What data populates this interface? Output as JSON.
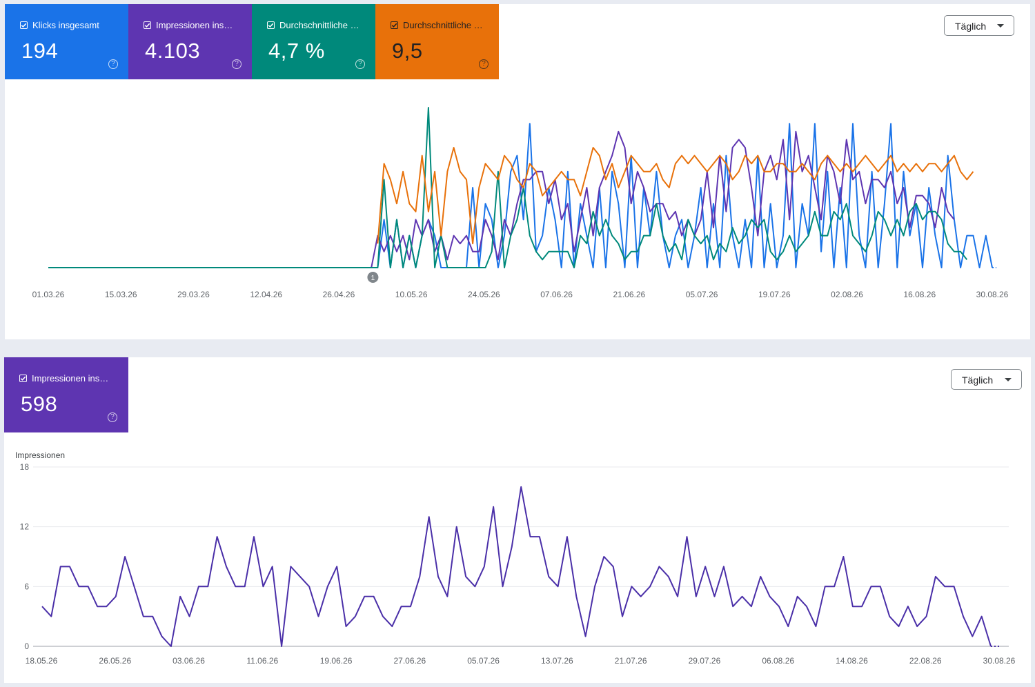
{
  "top_panel": {
    "cards": [
      {
        "label": "Klicks insgesamt",
        "value": "194",
        "color": "#1a73e8",
        "text_color": "#ffffff"
      },
      {
        "label": "Impressionen ins…",
        "value": "4.103",
        "color": "#5e35b1",
        "text_color": "#ffffff"
      },
      {
        "label": "Durchschnittliche …",
        "value": "4,7 %",
        "color": "#00897b",
        "text_color": "#ffffff"
      },
      {
        "label": "Durchschnittliche …",
        "value": "9,5",
        "color": "#e8710a",
        "text_color": "#202124"
      }
    ],
    "interval_label": "Täglich",
    "annotation_marker": "1"
  },
  "bottom_panel": {
    "cards": [
      {
        "label": "Impressionen ins…",
        "value": "598",
        "color": "#5e35b1",
        "text_color": "#ffffff"
      }
    ],
    "interval_label": "Täglich"
  },
  "chart_data": [
    {
      "type": "line",
      "x_ticks": [
        "01.03.26",
        "15.03.26",
        "29.03.26",
        "12.04.26",
        "26.04.26",
        "10.05.26",
        "24.05.26",
        "07.06.26",
        "21.06.26",
        "05.07.26",
        "19.07.26",
        "02.08.26",
        "16.08.26",
        "30.08.26"
      ],
      "grid": false,
      "y_axis_visible": false,
      "series": [
        {
          "color": "#1a73e8",
          "values": [
            0,
            0,
            0,
            0,
            0,
            0,
            0,
            0,
            0,
            0,
            0,
            0,
            0,
            0,
            0,
            0,
            0,
            0,
            0,
            0,
            0,
            0,
            0,
            0,
            0,
            0,
            0,
            0,
            0,
            0,
            0,
            0,
            0,
            0,
            0,
            0,
            0,
            0,
            0,
            0,
            0,
            0,
            0,
            0,
            0,
            0,
            0,
            0,
            0,
            0,
            0,
            0,
            0,
            0.3,
            0,
            0.3,
            0,
            0.2,
            0,
            0.2,
            0.3,
            0.2,
            0,
            0,
            0,
            0,
            0,
            0.5,
            0,
            0.4,
            0.3,
            0,
            0.2,
            0.6,
            0.7,
            0.3,
            0.9,
            0.1,
            0.2,
            0.5,
            0.3,
            0,
            0.6,
            0,
            0.4,
            0.2,
            0,
            0.5,
            0,
            0.6,
            0.4,
            0,
            0.7,
            0,
            0.5,
            0.2,
            0.6,
            0.2,
            0,
            0.2,
            0.3,
            0,
            0.2,
            0.5,
            0,
            0.4,
            0,
            0.7,
            0.2,
            0,
            0.3,
            0,
            0.7,
            0,
            0.4,
            0,
            0.2,
            0.9,
            0,
            0.4,
            0.2,
            0.9,
            0.1,
            0.6,
            0,
            0.5,
            0,
            0.9,
            0.2,
            0,
            0.6,
            0,
            0.4,
            0.9,
            0,
            0.6,
            0.2,
            0.4,
            0,
            0.5,
            0.2,
            0,
            0.7,
            0.3,
            0,
            0.2,
            0.2,
            0,
            0.2,
            0
          ]
        },
        {
          "color": "#5e35b1",
          "values": [
            0,
            0,
            0,
            0,
            0,
            0,
            0,
            0,
            0,
            0,
            0,
            0,
            0,
            0,
            0,
            0,
            0,
            0,
            0,
            0,
            0,
            0,
            0,
            0,
            0,
            0,
            0,
            0,
            0,
            0,
            0,
            0,
            0,
            0,
            0,
            0,
            0,
            0,
            0,
            0,
            0,
            0,
            0,
            0,
            0,
            0,
            0,
            0,
            0,
            0,
            0,
            0,
            0.2,
            0.1,
            0.2,
            0.1,
            0.2,
            0.05,
            0.3,
            0.2,
            0.3,
            0.1,
            0.2,
            0.05,
            0.2,
            0.15,
            0.2,
            0.1,
            0.1,
            0.3,
            0.2,
            0.05,
            0.3,
            0.2,
            0.4,
            0.55,
            0.55,
            0.6,
            0.6,
            0.4,
            0.55,
            0.3,
            0.4,
            0.1,
            0.3,
            0.5,
            0.2,
            0.5,
            0.6,
            0.7,
            0.85,
            0.75,
            0.4,
            0.6,
            0.5,
            0.35,
            0.4,
            0.4,
            0.3,
            0.35,
            0.2,
            0.3,
            0.2,
            0.3,
            0.6,
            0.25,
            0.7,
            0.35,
            0.75,
            0.8,
            0.75,
            0.5,
            0.2,
            0.6,
            0.7,
            0.55,
            0.8,
            0.3,
            0.85,
            0.6,
            0.7,
            0.5,
            0.3,
            0.7,
            0.6,
            0.4,
            0.8,
            0.55,
            0.6,
            0.4,
            0.55,
            0.55,
            0.5,
            0.6,
            0.4,
            0.5,
            0.25,
            0.45,
            0.45,
            0.4,
            0.25,
            0.5,
            0.35,
            0.3
          ]
        },
        {
          "color": "#00897b",
          "values": [
            0,
            0,
            0,
            0,
            0,
            0,
            0,
            0,
            0,
            0,
            0,
            0,
            0,
            0,
            0,
            0,
            0,
            0,
            0,
            0,
            0,
            0,
            0,
            0,
            0,
            0,
            0,
            0,
            0,
            0,
            0,
            0,
            0,
            0,
            0,
            0,
            0,
            0,
            0,
            0,
            0,
            0,
            0,
            0,
            0,
            0,
            0,
            0,
            0,
            0,
            0,
            0,
            0,
            0.55,
            0,
            0.3,
            0,
            0.2,
            0,
            0.2,
            1.0,
            0,
            0.2,
            0,
            0,
            0,
            0,
            0,
            0,
            0,
            0.1,
            0.6,
            0,
            0.2,
            0.3,
            0.5,
            0.2,
            0.1,
            0.05,
            0.1,
            0.1,
            0.1,
            0.1,
            0,
            0.2,
            0.15,
            0.35,
            0.2,
            0.3,
            0.2,
            0.15,
            0.05,
            0.1,
            0.1,
            0.2,
            0.2,
            0.4,
            0.2,
            0.1,
            0.15,
            0.05,
            0.3,
            0.2,
            0.15,
            0.2,
            0.05,
            0.15,
            0.1,
            0.25,
            0.15,
            0.2,
            0.3,
            0.25,
            0.3,
            0.1,
            0.05,
            0.1,
            0.2,
            0.1,
            0.15,
            0.2,
            0.35,
            0.2,
            0.2,
            0.35,
            0.3,
            0.4,
            0.2,
            0.15,
            0.1,
            0.2,
            0.35,
            0.3,
            0.2,
            0.3,
            0.2,
            0.35,
            0.4,
            0.3,
            0.35,
            0.35,
            0.3,
            0.15,
            0.1,
            0.1,
            0.05
          ]
        },
        {
          "color": "#e8710a",
          "values": [
            null,
            null,
            null,
            null,
            null,
            null,
            null,
            null,
            null,
            null,
            null,
            null,
            null,
            null,
            null,
            null,
            null,
            null,
            null,
            null,
            null,
            null,
            null,
            null,
            null,
            null,
            null,
            null,
            null,
            null,
            null,
            null,
            null,
            null,
            null,
            null,
            null,
            null,
            null,
            null,
            null,
            null,
            null,
            null,
            null,
            null,
            null,
            null,
            null,
            null,
            null,
            null,
            0.15,
            0.65,
            0.55,
            0.4,
            0.6,
            0.4,
            0.35,
            0.7,
            0.35,
            0.6,
            0.2,
            0.6,
            0.75,
            0.6,
            0.55,
            0.15,
            0.5,
            0.65,
            0.6,
            0.55,
            0.7,
            0.65,
            0.55,
            0.5,
            0.65,
            0.6,
            0.45,
            0.5,
            0.55,
            0.6,
            0.55,
            0.55,
            0.45,
            0.6,
            0.75,
            0.7,
            0.55,
            0.65,
            0.5,
            0.6,
            0.7,
            0.65,
            0.6,
            0.6,
            0.65,
            0.55,
            0.5,
            0.65,
            0.7,
            0.65,
            0.7,
            0.65,
            0.6,
            0.65,
            0.7,
            0.65,
            0.55,
            0.6,
            0.7,
            0.65,
            0.7,
            0.6,
            0.6,
            0.65,
            0.65,
            0.6,
            0.6,
            0.65,
            0.6,
            0.55,
            0.65,
            0.7,
            0.65,
            0.6,
            0.65,
            0.6,
            0.65,
            0.7,
            0.65,
            0.6,
            0.65,
            0.7,
            0.6,
            0.65,
            0.6,
            0.65,
            0.6,
            0.65,
            0.65,
            0.6,
            0.65,
            0.7,
            0.6,
            0.55,
            0.6
          ]
        }
      ]
    },
    {
      "type": "line",
      "ylabel": "Impressionen",
      "ylim": [
        0,
        18
      ],
      "y_ticks": [
        0,
        6,
        12,
        18
      ],
      "grid": true,
      "x_ticks": [
        "18.05.26",
        "26.05.26",
        "03.06.26",
        "11.06.26",
        "19.06.26",
        "27.06.26",
        "05.07.26",
        "13.07.26",
        "21.07.26",
        "29.07.26",
        "06.08.26",
        "14.08.26",
        "22.08.26",
        "30.08.26"
      ],
      "series": [
        {
          "color": "#4a2fa8",
          "values": [
            4,
            3,
            8,
            8,
            6,
            6,
            4,
            4,
            5,
            9,
            6,
            3,
            3,
            1,
            0,
            5,
            3,
            6,
            6,
            11,
            8,
            6,
            6,
            11,
            6,
            8,
            0,
            8,
            7,
            6,
            3,
            6,
            8,
            2,
            3,
            5,
            5,
            3,
            2,
            4,
            4,
            7,
            13,
            7,
            5,
            12,
            7,
            6,
            8,
            14,
            6,
            10,
            16,
            11,
            11,
            7,
            6,
            11,
            5,
            1,
            6,
            9,
            8,
            3,
            6,
            5,
            6,
            8,
            7,
            5,
            11,
            5,
            8,
            5,
            8,
            4,
            5,
            4,
            7,
            5,
            4,
            2,
            5,
            4,
            2,
            6,
            6,
            9,
            4,
            4,
            6,
            6,
            3,
            2,
            4,
            2,
            3,
            7,
            6,
            6,
            3,
            1,
            3,
            0
          ]
        }
      ],
      "projected_tail": [
        0,
        0
      ]
    }
  ]
}
